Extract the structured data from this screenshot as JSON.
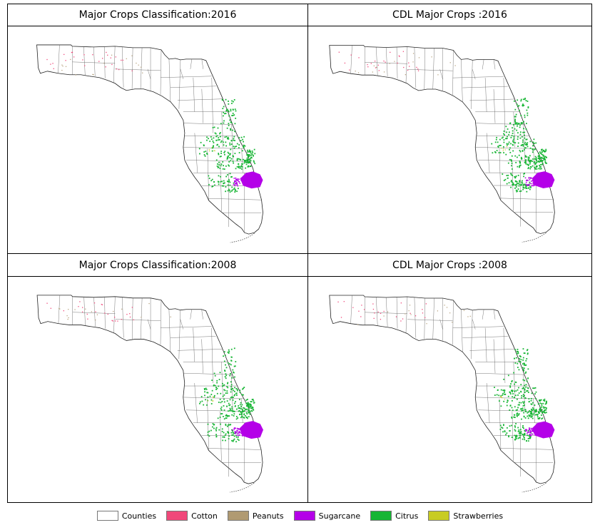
{
  "panels": [
    {
      "title": "Major Crops Classification:2016",
      "citrus_density": 1.0,
      "sugarcane_extent": 1.0
    },
    {
      "title": "CDL Major Crops :2016",
      "citrus_density": 1.25,
      "sugarcane_extent": 1.0
    },
    {
      "title": "Major Crops Classification:2008",
      "citrus_density": 1.05,
      "sugarcane_extent": 1.05
    },
    {
      "title": "CDL Major Crops :2008",
      "citrus_density": 1.2,
      "sugarcane_extent": 1.0
    }
  ],
  "legend": [
    {
      "label": "Counties",
      "color": "#ffffff"
    },
    {
      "label": "Cotton",
      "color": "#f0487a"
    },
    {
      "label": "Peanuts",
      "color": "#b09a72"
    },
    {
      "label": "Sugarcane",
      "color": "#b400e8"
    },
    {
      "label": "Citrus",
      "color": "#17b534"
    },
    {
      "label": "Strawberries",
      "color": "#c8cc22"
    }
  ]
}
